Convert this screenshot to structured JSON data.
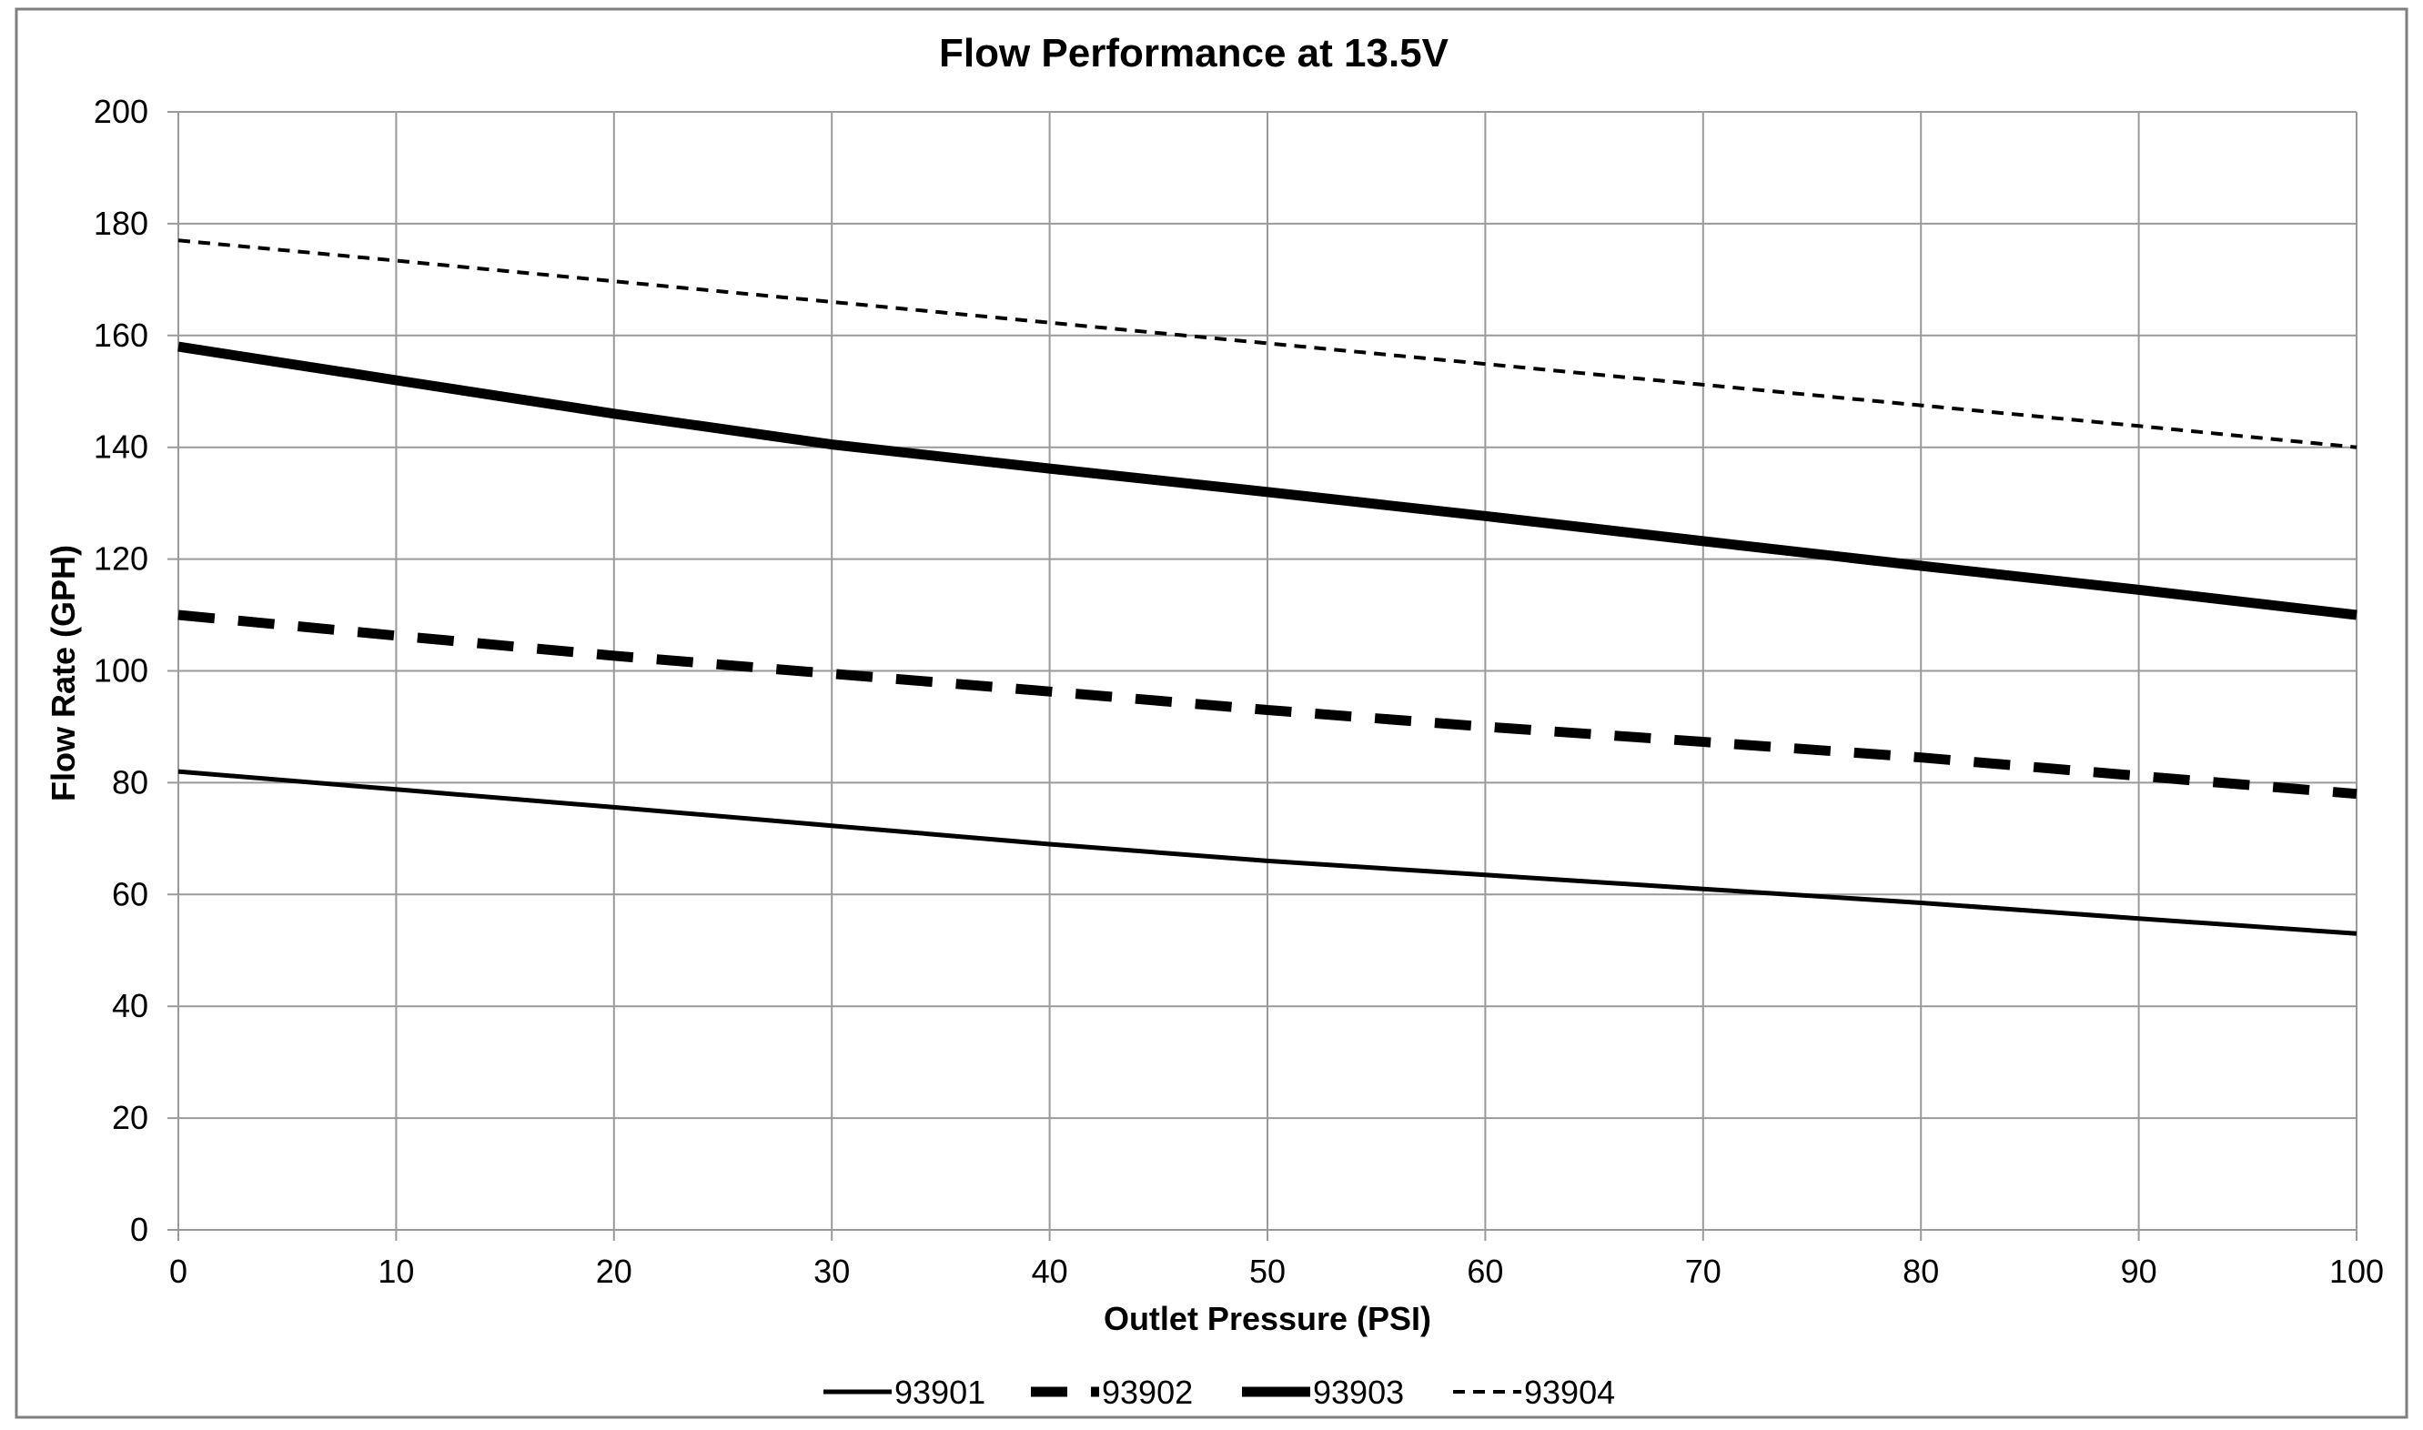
{
  "chart_data": {
    "type": "line",
    "title": "Flow Performance at 13.5V",
    "xlabel": "Outlet Pressure (PSI)",
    "ylabel": "Flow Rate (GPH)",
    "xlim": [
      0,
      100
    ],
    "ylim": [
      0,
      200
    ],
    "x_ticks": [
      "0",
      "10",
      "20",
      "30",
      "40",
      "50",
      "60",
      "70",
      "80",
      "90",
      "100"
    ],
    "y_ticks": [
      "0",
      "20",
      "40",
      "60",
      "80",
      "100",
      "120",
      "140",
      "160",
      "180",
      "200"
    ],
    "grid": true,
    "legend_position": "bottom",
    "x": [
      0,
      10,
      20,
      30,
      40,
      50,
      60,
      70,
      80,
      90,
      100
    ],
    "series": [
      {
        "name": "93901",
        "style": "thin-solid",
        "color": "#000000",
        "values": [
          82,
          78.8,
          75.6,
          72.3,
          69,
          66,
          63.5,
          61,
          58.5,
          55.7,
          53
        ]
      },
      {
        "name": "93902",
        "style": "thick-dashed",
        "color": "#000000",
        "values": [
          110,
          106.3,
          102.7,
          99.5,
          96.3,
          93,
          90,
          87.3,
          84.5,
          81.2,
          78
        ]
      },
      {
        "name": "93903",
        "style": "thick-solid",
        "color": "#000000",
        "values": [
          158,
          152,
          146,
          140.5,
          136.2,
          132,
          127.7,
          123.2,
          118.8,
          114.5,
          110
        ]
      },
      {
        "name": "93904",
        "style": "thin-dashed",
        "color": "#000000",
        "values": [
          177,
          173.4,
          169.7,
          166,
          162.3,
          158.6,
          154.9,
          151.2,
          147.5,
          143.8,
          140
        ]
      }
    ]
  },
  "colors": {
    "grid": "#9a9a9a",
    "axis": "#9a9a9a",
    "frame": "#7f7f7f",
    "series": "#000000"
  }
}
